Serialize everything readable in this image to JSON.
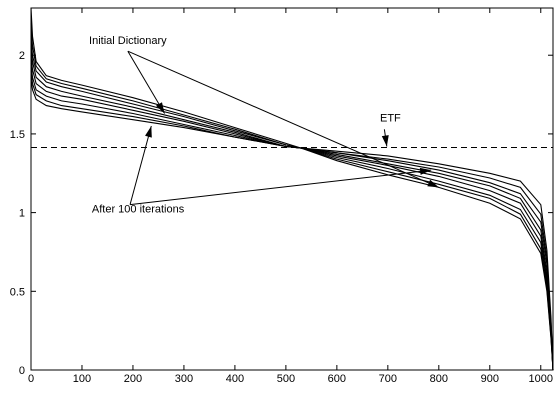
{
  "chart_data": {
    "type": "line",
    "title": "",
    "xlabel": "",
    "ylabel": "",
    "xlim": [
      0,
      1024
    ],
    "ylim": [
      0,
      2.3
    ],
    "xticks": [
      0,
      100,
      200,
      300,
      400,
      500,
      600,
      700,
      800,
      900,
      1000
    ],
    "yticks": [
      0,
      0.5,
      1,
      1.5,
      2
    ],
    "grid": false,
    "legend": "none",
    "reference_line": {
      "label": "ETF",
      "y": 1.414,
      "style": "dashed"
    },
    "series": [
      {
        "x": [
          0,
          3,
          10,
          30,
          60,
          100,
          200,
          300,
          400,
          500,
          530,
          600,
          700,
          800,
          900,
          960,
          1000,
          1012,
          1020,
          1024
        ],
        "values": [
          2.3,
          2.12,
          1.96,
          1.87,
          1.84,
          1.81,
          1.73,
          1.64,
          1.54,
          1.44,
          1.41,
          1.33,
          1.24,
          1.16,
          1.06,
          0.96,
          0.74,
          0.5,
          0.2,
          0.0
        ]
      },
      {
        "x": [
          0,
          3,
          10,
          30,
          60,
          100,
          200,
          300,
          400,
          500,
          530,
          600,
          700,
          800,
          900,
          960,
          1000,
          1012,
          1020,
          1024
        ],
        "values": [
          2.2,
          2.06,
          1.93,
          1.85,
          1.82,
          1.79,
          1.71,
          1.62,
          1.53,
          1.43,
          1.41,
          1.34,
          1.26,
          1.18,
          1.09,
          0.99,
          0.77,
          0.52,
          0.21,
          0.0
        ]
      },
      {
        "x": [
          0,
          3,
          10,
          30,
          60,
          100,
          200,
          300,
          400,
          500,
          530,
          600,
          700,
          800,
          900,
          960,
          1000,
          1012,
          1020,
          1024
        ],
        "values": [
          2.12,
          2.0,
          1.9,
          1.83,
          1.8,
          1.77,
          1.69,
          1.61,
          1.52,
          1.43,
          1.41,
          1.35,
          1.28,
          1.2,
          1.11,
          1.02,
          0.81,
          0.55,
          0.23,
          0.0
        ]
      },
      {
        "x": [
          0,
          3,
          10,
          30,
          60,
          100,
          200,
          300,
          400,
          500,
          530,
          600,
          700,
          800,
          900,
          960,
          1000,
          1012,
          1020,
          1024
        ],
        "values": [
          2.06,
          1.96,
          1.86,
          1.8,
          1.77,
          1.74,
          1.67,
          1.59,
          1.51,
          1.42,
          1.41,
          1.36,
          1.3,
          1.23,
          1.14,
          1.06,
          0.85,
          0.58,
          0.24,
          0.0
        ]
      },
      {
        "x": [
          0,
          3,
          10,
          30,
          60,
          100,
          200,
          300,
          400,
          500,
          530,
          600,
          700,
          800,
          900,
          960,
          1000,
          1012,
          1020,
          1024
        ],
        "values": [
          2.0,
          1.91,
          1.82,
          1.77,
          1.74,
          1.72,
          1.65,
          1.58,
          1.5,
          1.42,
          1.41,
          1.37,
          1.31,
          1.25,
          1.17,
          1.09,
          0.89,
          0.62,
          0.26,
          0.0
        ]
      },
      {
        "x": [
          0,
          3,
          10,
          30,
          60,
          100,
          200,
          300,
          400,
          500,
          530,
          600,
          700,
          800,
          900,
          960,
          1000,
          1012,
          1020,
          1024
        ],
        "values": [
          1.95,
          1.86,
          1.78,
          1.74,
          1.71,
          1.69,
          1.63,
          1.56,
          1.49,
          1.42,
          1.41,
          1.38,
          1.33,
          1.27,
          1.19,
          1.12,
          0.94,
          0.67,
          0.28,
          0.0
        ]
      },
      {
        "x": [
          0,
          3,
          10,
          30,
          60,
          100,
          200,
          300,
          400,
          500,
          530,
          600,
          700,
          800,
          900,
          960,
          1000,
          1012,
          1020,
          1024
        ],
        "values": [
          1.9,
          1.82,
          1.75,
          1.71,
          1.68,
          1.66,
          1.61,
          1.55,
          1.48,
          1.42,
          1.41,
          1.38,
          1.34,
          1.29,
          1.22,
          1.16,
          0.99,
          0.71,
          0.3,
          0.0
        ]
      },
      {
        "x": [
          0,
          3,
          10,
          30,
          60,
          100,
          200,
          300,
          400,
          500,
          530,
          600,
          700,
          800,
          900,
          960,
          1000,
          1012,
          1020,
          1024
        ],
        "values": [
          1.85,
          1.78,
          1.72,
          1.68,
          1.66,
          1.64,
          1.59,
          1.54,
          1.48,
          1.42,
          1.41,
          1.39,
          1.36,
          1.31,
          1.25,
          1.2,
          1.05,
          0.76,
          0.33,
          0.0
        ]
      }
    ],
    "annotations": [
      {
        "text": "Initial Dictionary",
        "text_at": [
          190,
          2.07
        ],
        "arrows_to": [
          [
            262,
            1.63
          ],
          [
            800,
            1.16
          ]
        ]
      },
      {
        "text": "After 100 iterations",
        "text_at": [
          210,
          1.0
        ],
        "arrows_to": [
          [
            236,
            1.55
          ],
          [
            785,
            1.27
          ]
        ]
      },
      {
        "text": "ETF",
        "text_at": [
          705,
          1.58
        ],
        "arrows_to": [
          [
            698,
            1.42
          ]
        ]
      }
    ]
  }
}
